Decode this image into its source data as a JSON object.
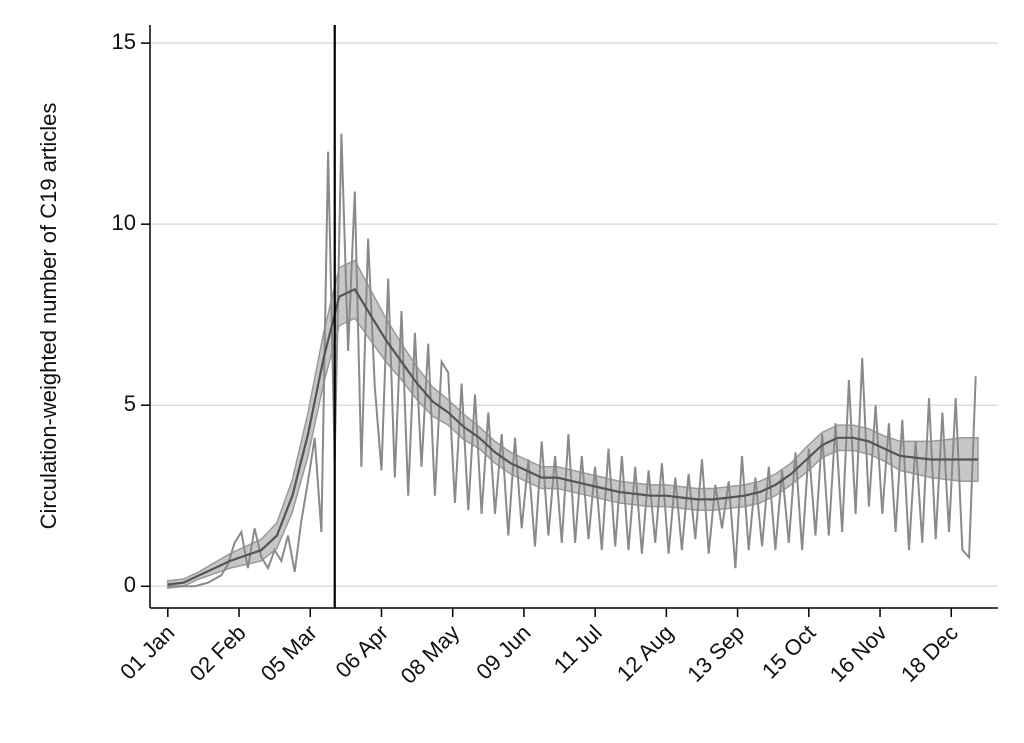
{
  "chart_data": {
    "type": "line",
    "ylabel": "Circulation-weighted number of C19 articles",
    "xlim": [
      -8,
      373
    ],
    "ylim": [
      -0.6,
      15.5
    ],
    "yticks": [
      0,
      5,
      10,
      15
    ],
    "xticks": [
      {
        "value": 0,
        "label": "01 Jan"
      },
      {
        "value": 32,
        "label": "02 Feb"
      },
      {
        "value": 64,
        "label": "05 Mar"
      },
      {
        "value": 96,
        "label": "06 Apr"
      },
      {
        "value": 128,
        "label": "08 May"
      },
      {
        "value": 160,
        "label": "09 Jun"
      },
      {
        "value": 192,
        "label": "11 Jul"
      },
      {
        "value": 224,
        "label": "12 Aug"
      },
      {
        "value": 256,
        "label": "13 Sep"
      },
      {
        "value": 288,
        "label": "15 Oct"
      },
      {
        "value": 320,
        "label": "16 Nov"
      },
      {
        "value": 352,
        "label": "18 Dec"
      }
    ],
    "grid": true,
    "vline": 75,
    "band": {
      "color": "#bdbdbd",
      "x": [
        0,
        7,
        14,
        21,
        28,
        35,
        42,
        49,
        56,
        63,
        70,
        77,
        84,
        91,
        98,
        105,
        112,
        119,
        126,
        133,
        140,
        147,
        154,
        161,
        168,
        175,
        182,
        189,
        196,
        203,
        210,
        217,
        224,
        231,
        238,
        245,
        252,
        259,
        266,
        273,
        280,
        287,
        294,
        301,
        308,
        315,
        322,
        329,
        336,
        343,
        350,
        357,
        364
      ],
      "lower": [
        -0.05,
        0,
        0.2,
        0.35,
        0.5,
        0.6,
        0.7,
        1.05,
        2.05,
        3.6,
        5.6,
        7.2,
        7.4,
        6.8,
        6.2,
        5.7,
        5.15,
        4.7,
        4.45,
        4.05,
        3.8,
        3.4,
        3.1,
        2.9,
        2.7,
        2.7,
        2.6,
        2.5,
        2.4,
        2.3,
        2.25,
        2.2,
        2.2,
        2.15,
        2.1,
        2.1,
        2.15,
        2.2,
        2.3,
        2.5,
        2.8,
        3.15,
        3.55,
        3.75,
        3.75,
        3.65,
        3.45,
        3.2,
        3.1,
        3.0,
        2.95,
        2.9,
        2.9
      ],
      "upper": [
        0.15,
        0.2,
        0.4,
        0.65,
        0.9,
        1.1,
        1.3,
        1.75,
        2.95,
        4.8,
        7.0,
        8.8,
        9.0,
        8.2,
        7.4,
        6.7,
        6.05,
        5.5,
        5.15,
        4.75,
        4.4,
        4.0,
        3.7,
        3.5,
        3.3,
        3.3,
        3.2,
        3.1,
        3.0,
        2.9,
        2.85,
        2.8,
        2.8,
        2.75,
        2.7,
        2.7,
        2.75,
        2.8,
        2.9,
        3.1,
        3.4,
        3.85,
        4.25,
        4.45,
        4.45,
        4.35,
        4.15,
        4.0,
        4.0,
        4.0,
        4.05,
        4.1,
        4.1
      ]
    },
    "series": [
      {
        "color": "#8a8a8a",
        "x": [
          0,
          3,
          6,
          9,
          12,
          15,
          18,
          21,
          24,
          27,
          30,
          33,
          36,
          39,
          42,
          45,
          48,
          51,
          54,
          57,
          60,
          63,
          66,
          69,
          72,
          75,
          78,
          81,
          84,
          87,
          90,
          93,
          96,
          99,
          102,
          105,
          108,
          111,
          114,
          117,
          120,
          123,
          126,
          129,
          132,
          135,
          138,
          141,
          144,
          147,
          150,
          153,
          156,
          159,
          162,
          165,
          168,
          171,
          174,
          177,
          180,
          183,
          186,
          189,
          192,
          195,
          198,
          201,
          204,
          207,
          210,
          213,
          216,
          219,
          222,
          225,
          228,
          231,
          234,
          237,
          240,
          243,
          246,
          249,
          252,
          255,
          258,
          261,
          264,
          267,
          270,
          273,
          276,
          279,
          282,
          285,
          288,
          291,
          294,
          297,
          300,
          303,
          306,
          309,
          312,
          315,
          318,
          321,
          324,
          327,
          330,
          333,
          336,
          339,
          342,
          345,
          348,
          351,
          354,
          357,
          360,
          363
        ],
        "values": [
          0,
          0,
          0,
          0,
          0,
          0.05,
          0.1,
          0.2,
          0.3,
          0.6,
          1.2,
          1.5,
          0.5,
          1.6,
          0.8,
          0.5,
          1.0,
          0.7,
          1.4,
          0.4,
          1.8,
          2.9,
          4.1,
          1.5,
          12.0,
          3.5,
          12.5,
          6.5,
          10.9,
          3.3,
          9.6,
          5.5,
          3.2,
          8.5,
          3.0,
          7.6,
          2.5,
          7.0,
          3.3,
          6.7,
          2.5,
          6.2,
          5.9,
          2.3,
          5.6,
          2.1,
          5.3,
          2.0,
          4.8,
          2.0,
          4.2,
          1.4,
          4.1,
          1.6,
          3.5,
          1.1,
          4.0,
          1.4,
          3.6,
          1.2,
          4.2,
          1.2,
          3.6,
          1.3,
          3.3,
          1.0,
          3.8,
          1.1,
          3.6,
          1.0,
          3.3,
          0.9,
          3.2,
          1.2,
          3.4,
          0.9,
          3.0,
          1.0,
          3.1,
          1.3,
          3.5,
          0.9,
          2.8,
          1.6,
          2.9,
          0.5,
          3.6,
          1.0,
          3.0,
          1.1,
          3.3,
          1.0,
          3.2,
          1.2,
          3.7,
          1.0,
          3.8,
          1.4,
          4.2,
          1.4,
          4.5,
          1.5,
          5.7,
          2.0,
          6.3,
          2.2,
          5.0,
          2.0,
          4.5,
          1.5,
          4.6,
          1.0,
          4.0,
          1.2,
          5.2,
          1.3,
          4.8,
          1.5,
          5.2,
          1.0,
          0.8,
          5.8
        ]
      },
      {
        "color": "#555555",
        "x": [
          0,
          7,
          14,
          21,
          28,
          35,
          42,
          49,
          56,
          63,
          70,
          77,
          84,
          91,
          98,
          105,
          112,
          119,
          126,
          133,
          140,
          147,
          154,
          161,
          168,
          175,
          182,
          189,
          196,
          203,
          210,
          217,
          224,
          231,
          238,
          245,
          252,
          259,
          266,
          273,
          280,
          287,
          294,
          301,
          308,
          315,
          322,
          329,
          336,
          343,
          350,
          357,
          364
        ],
        "values": [
          0.05,
          0.1,
          0.3,
          0.5,
          0.7,
          0.85,
          1.0,
          1.4,
          2.5,
          4.2,
          6.3,
          8.0,
          8.2,
          7.5,
          6.8,
          6.2,
          5.6,
          5.1,
          4.8,
          4.4,
          4.1,
          3.7,
          3.4,
          3.2,
          3.0,
          3.0,
          2.9,
          2.8,
          2.7,
          2.6,
          2.55,
          2.5,
          2.5,
          2.45,
          2.4,
          2.4,
          2.45,
          2.5,
          2.6,
          2.8,
          3.1,
          3.5,
          3.9,
          4.1,
          4.1,
          4.0,
          3.8,
          3.6,
          3.55,
          3.5,
          3.5,
          3.5,
          3.5
        ]
      }
    ]
  }
}
